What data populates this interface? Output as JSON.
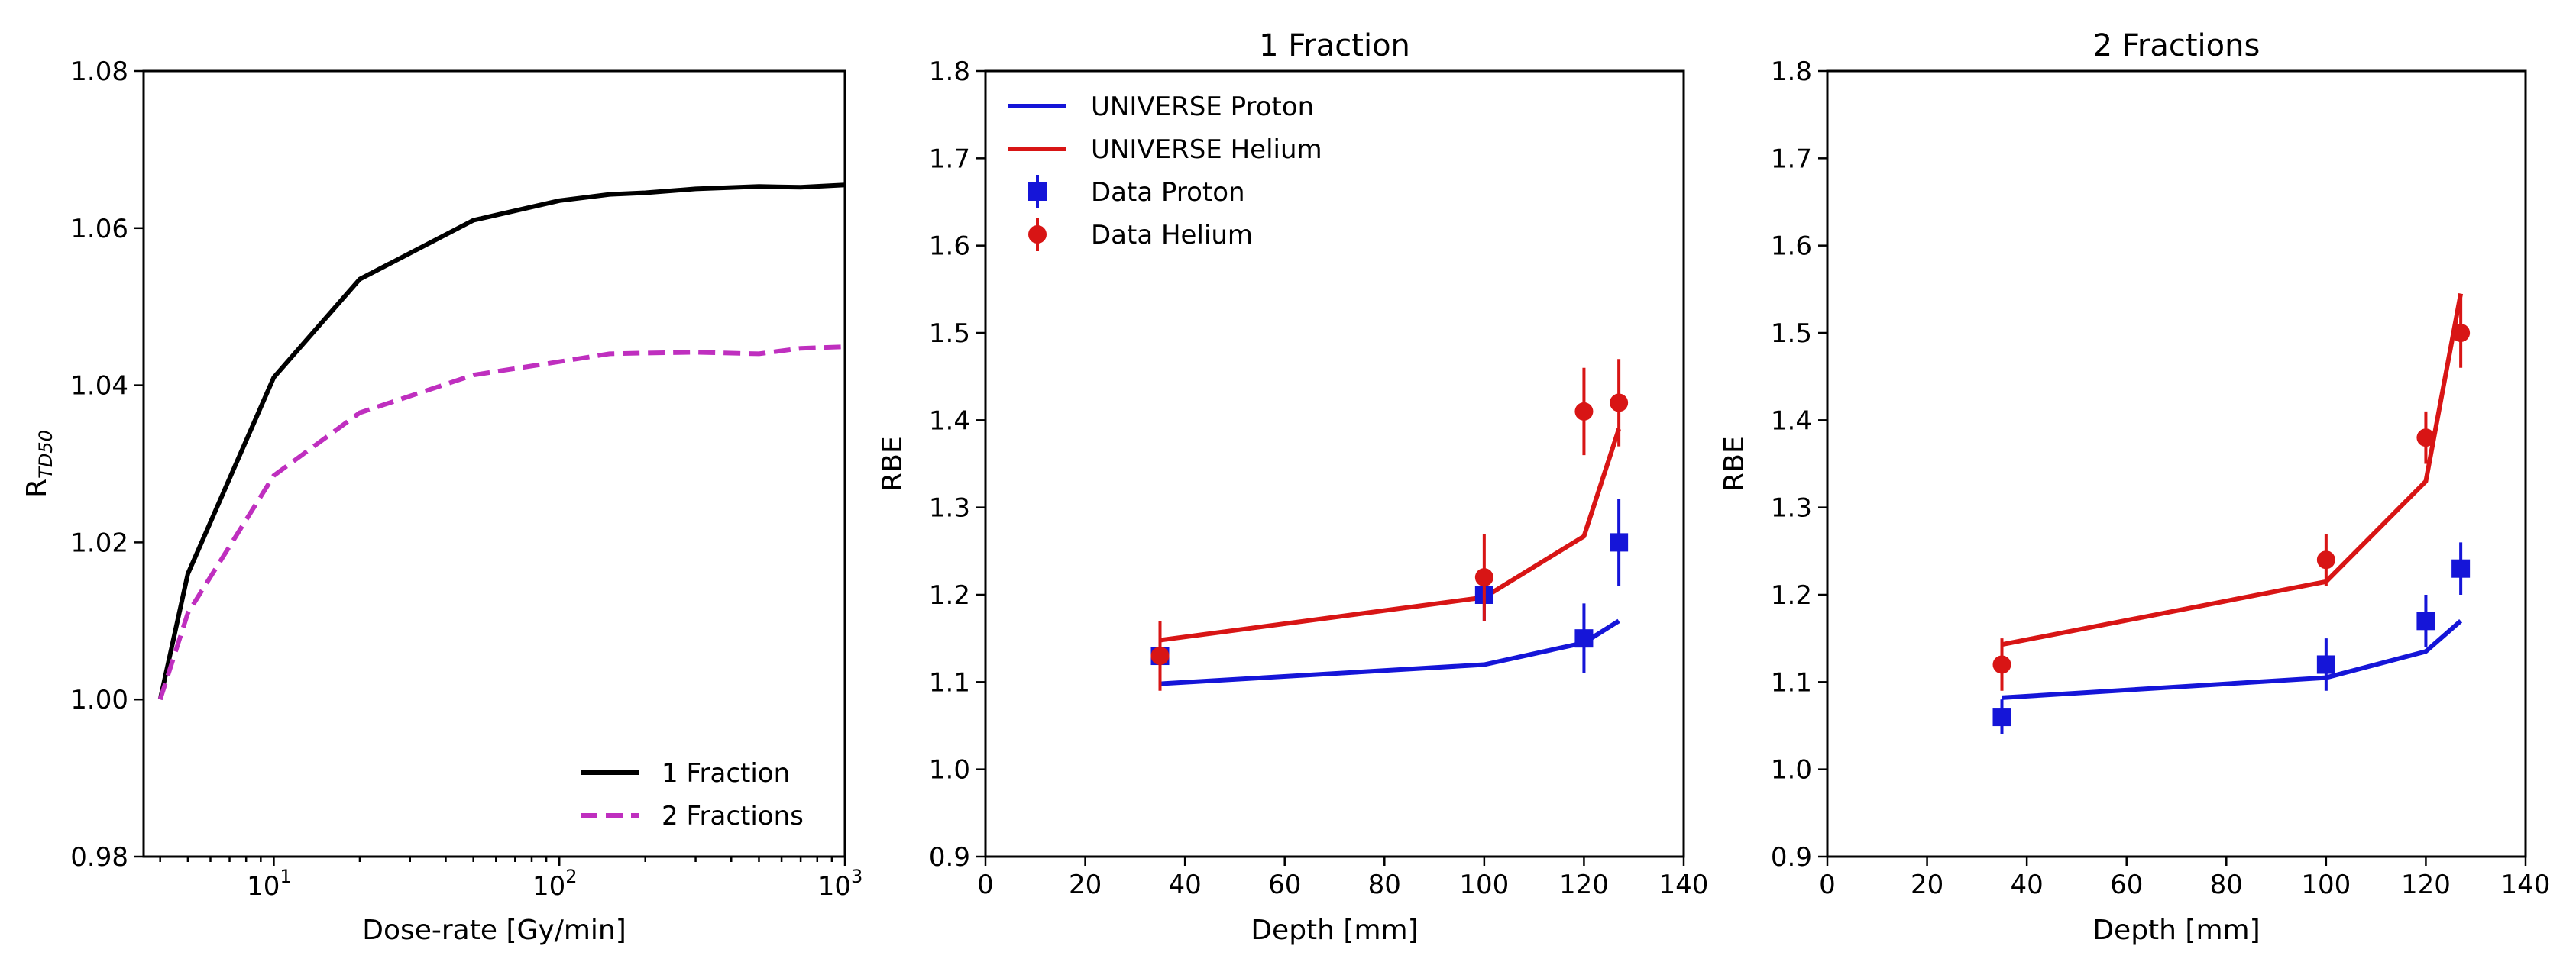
{
  "chart_data": [
    {
      "type": "line",
      "title": "",
      "xlabel": "Dose-rate [Gy/min]",
      "ylabel": "R",
      "ylabel_subscript": "TD50",
      "xscale": "log",
      "xlim": [
        3.5,
        1000
      ],
      "ylim": [
        0.98,
        1.08
      ],
      "xticks": [
        10,
        100,
        1000
      ],
      "xtick_labels": [
        {
          "base": "10",
          "exp": "1"
        },
        {
          "base": "10",
          "exp": "2"
        },
        {
          "base": "10",
          "exp": "3"
        }
      ],
      "yticks": [
        0.98,
        1.0,
        1.02,
        1.04,
        1.06,
        1.08
      ],
      "ytick_labels": [
        "0.98",
        "1.00",
        "1.02",
        "1.04",
        "1.06",
        "1.08"
      ],
      "legend_position": "bottom-right",
      "series": [
        {
          "name": "1 Fraction",
          "style": "solid",
          "color": "#000000",
          "x": [
            4,
            5,
            10,
            20,
            50,
            100,
            150,
            200,
            300,
            500,
            700,
            1000
          ],
          "y": [
            1.0,
            1.016,
            1.041,
            1.0535,
            1.061,
            1.0635,
            1.0643,
            1.0645,
            1.065,
            1.0653,
            1.0652,
            1.0655
          ]
        },
        {
          "name": "2 Fractions",
          "style": "dashed",
          "color": "#bf2fbf",
          "x": [
            4,
            5,
            10,
            20,
            50,
            100,
            150,
            200,
            300,
            500,
            700,
            1000
          ],
          "y": [
            1.0,
            1.011,
            1.0285,
            1.0365,
            1.0413,
            1.043,
            1.044,
            1.0441,
            1.0442,
            1.044,
            1.0447,
            1.0449
          ]
        }
      ]
    },
    {
      "type": "line",
      "title": "1 Fraction",
      "xlabel": "Depth [mm]",
      "ylabel": "RBE",
      "xlim": [
        0,
        140
      ],
      "ylim": [
        0.9,
        1.8
      ],
      "xticks": [
        0,
        20,
        40,
        60,
        80,
        100,
        120,
        140
      ],
      "xtick_labels": [
        "0",
        "20",
        "40",
        "60",
        "80",
        "100",
        "120",
        "140"
      ],
      "yticks": [
        0.9,
        1.0,
        1.1,
        1.2,
        1.3,
        1.4,
        1.5,
        1.6,
        1.7,
        1.8
      ],
      "ytick_labels": [
        "0.9",
        "1.0",
        "1.1",
        "1.2",
        "1.3",
        "1.4",
        "1.5",
        "1.6",
        "1.7",
        "1.8"
      ],
      "legend_position": "top-left",
      "series": [
        {
          "name": "UNIVERSE Proton",
          "kind": "line",
          "color": "#1515d8",
          "x": [
            35,
            100,
            120,
            127
          ],
          "y": [
            1.098,
            1.12,
            1.145,
            1.17
          ]
        },
        {
          "name": "UNIVERSE Helium",
          "kind": "line",
          "color": "#d81515",
          "x": [
            35,
            100,
            120,
            127
          ],
          "y": [
            1.148,
            1.197,
            1.267,
            1.39
          ]
        },
        {
          "name": "Data Proton",
          "kind": "square-errorbar",
          "color": "#1515d8",
          "x": [
            35,
            100,
            120,
            127
          ],
          "y": [
            1.13,
            1.2,
            1.15,
            1.26
          ],
          "err": [
            0.03,
            0.03,
            0.04,
            0.05
          ]
        },
        {
          "name": "Data Helium",
          "kind": "circle-errorbar",
          "color": "#d81515",
          "x": [
            35,
            100,
            120,
            127
          ],
          "y": [
            1.13,
            1.22,
            1.41,
            1.42
          ],
          "err": [
            0.04,
            0.05,
            0.05,
            0.05
          ]
        }
      ]
    },
    {
      "type": "line",
      "title": "2 Fractions",
      "xlabel": "Depth [mm]",
      "ylabel": "RBE",
      "xlim": [
        0,
        140
      ],
      "ylim": [
        0.9,
        1.8
      ],
      "xticks": [
        0,
        20,
        40,
        60,
        80,
        100,
        120,
        140
      ],
      "xtick_labels": [
        "0",
        "20",
        "40",
        "60",
        "80",
        "100",
        "120",
        "140"
      ],
      "yticks": [
        0.9,
        1.0,
        1.1,
        1.2,
        1.3,
        1.4,
        1.5,
        1.6,
        1.7,
        1.8
      ],
      "ytick_labels": [
        "0.9",
        "1.0",
        "1.1",
        "1.2",
        "1.3",
        "1.4",
        "1.5",
        "1.6",
        "1.7",
        "1.8"
      ],
      "series": [
        {
          "name": "UNIVERSE Proton",
          "kind": "line",
          "color": "#1515d8",
          "x": [
            35,
            100,
            120,
            127
          ],
          "y": [
            1.082,
            1.105,
            1.135,
            1.17
          ]
        },
        {
          "name": "UNIVERSE Helium",
          "kind": "line",
          "color": "#d81515",
          "x": [
            35,
            100,
            120,
            127
          ],
          "y": [
            1.143,
            1.215,
            1.33,
            1.545
          ]
        },
        {
          "name": "Data Proton",
          "kind": "square-errorbar",
          "color": "#1515d8",
          "x": [
            35,
            100,
            120,
            127
          ],
          "y": [
            1.06,
            1.12,
            1.17,
            1.23
          ],
          "err": [
            0.02,
            0.03,
            0.03,
            0.03
          ]
        },
        {
          "name": "Data Helium",
          "kind": "circle-errorbar",
          "color": "#d81515",
          "x": [
            35,
            100,
            120,
            127
          ],
          "y": [
            1.12,
            1.24,
            1.38,
            1.5
          ],
          "err": [
            0.03,
            0.03,
            0.03,
            0.04
          ]
        }
      ]
    }
  ]
}
